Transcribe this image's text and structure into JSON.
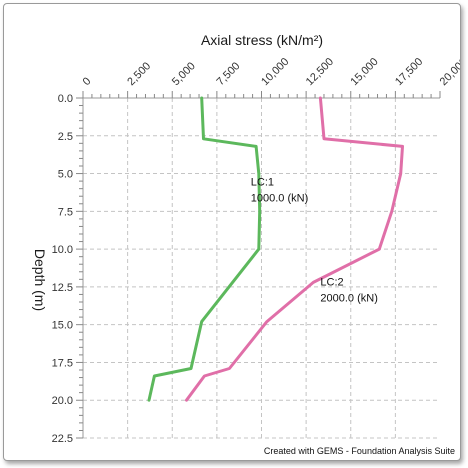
{
  "chart_data": {
    "type": "line",
    "xlabel": "Axial stress  (kN/m²)",
    "ylabel": "Depth   (m)",
    "xlim": [
      0,
      20000
    ],
    "ylim": [
      0,
      22.5
    ],
    "x_ticks": [
      "0",
      "2,500",
      "5,000",
      "7,500",
      "10,000",
      "12,500",
      "15,000",
      "17,500",
      "20,000"
    ],
    "y_ticks": [
      "0.0",
      "2.5",
      "5.0",
      "7.5",
      "10.0",
      "12.5",
      "15.0",
      "17.5",
      "20.0",
      "22.5"
    ],
    "x_axis_position": "top",
    "y_inverted": true,
    "grid": true,
    "series": [
      {
        "color": "#5cb85c",
        "points": [
          {
            "x": 6650,
            "y": 0.0
          },
          {
            "x": 6750,
            "y": 2.7
          },
          {
            "x": 9700,
            "y": 3.2
          },
          {
            "x": 9850,
            "y": 5.0
          },
          {
            "x": 9900,
            "y": 7.5
          },
          {
            "x": 9850,
            "y": 10.0
          },
          {
            "x": 6650,
            "y": 14.8
          },
          {
            "x": 6050,
            "y": 17.9
          },
          {
            "x": 4000,
            "y": 18.4
          },
          {
            "x": 3700,
            "y": 20.0
          }
        ]
      },
      {
        "color": "#e06fa8",
        "points": [
          {
            "x": 13300,
            "y": 0.0
          },
          {
            "x": 13500,
            "y": 2.7
          },
          {
            "x": 17900,
            "y": 3.2
          },
          {
            "x": 17800,
            "y": 5.0
          },
          {
            "x": 17300,
            "y": 7.5
          },
          {
            "x": 16600,
            "y": 10.0
          },
          {
            "x": 12900,
            "y": 12.2
          },
          {
            "x": 10300,
            "y": 14.8
          },
          {
            "x": 8200,
            "y": 17.9
          },
          {
            "x": 6800,
            "y": 18.4
          },
          {
            "x": 5800,
            "y": 20.0
          }
        ]
      }
    ],
    "annotations": [
      {
        "lines": [
          "LC:1",
          "1000.0 (kN)"
        ],
        "anchor_x": 9400,
        "anchor_y": 5.8
      },
      {
        "lines": [
          "LC:2",
          "2000.0 (kN)"
        ],
        "anchor_x": 13300,
        "anchor_y": 12.4
      }
    ]
  },
  "footer": "Created with GEMS - Foundation Analysis Suite"
}
